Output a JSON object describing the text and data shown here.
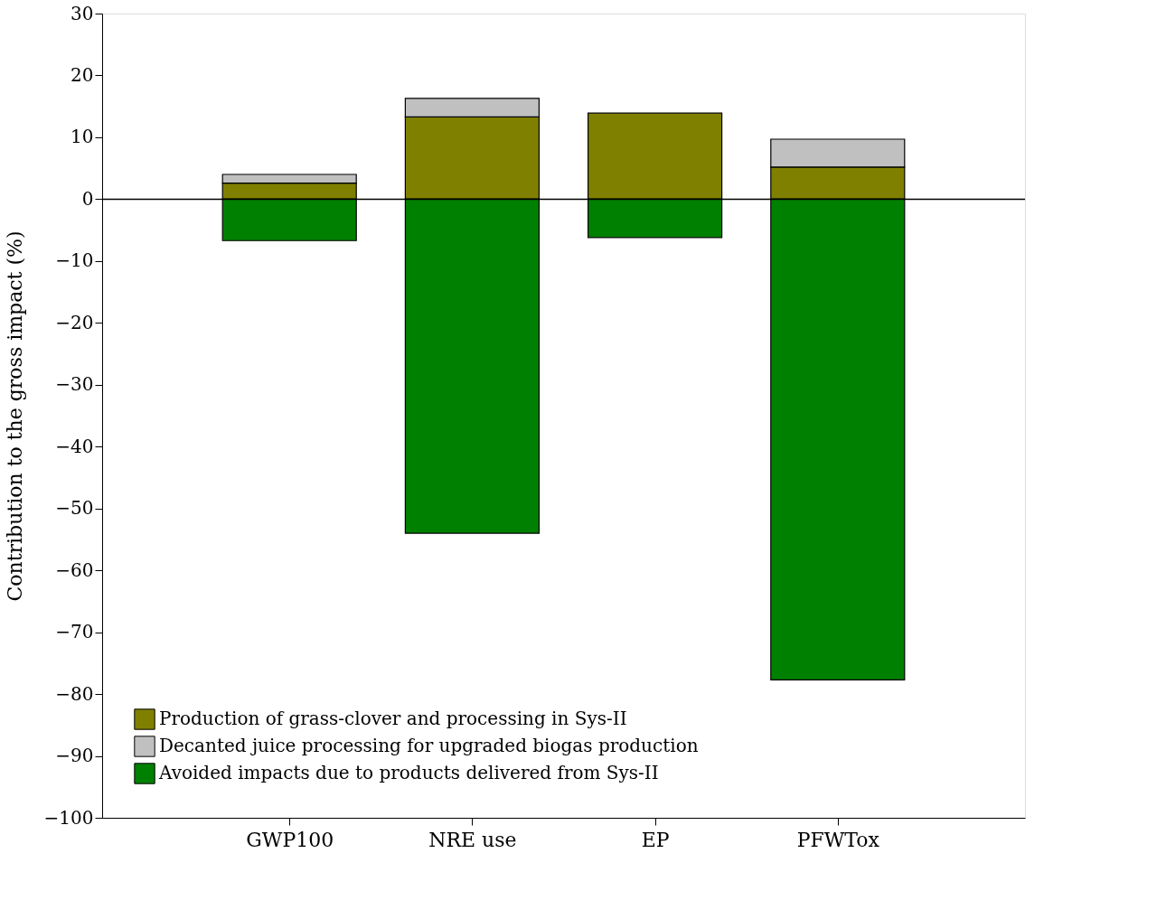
{
  "chart_data": {
    "type": "bar",
    "stacked": true,
    "ylabel": "Contribution to the gross impact (%)",
    "categories": [
      "GWP100",
      "NRE use",
      "EP",
      "PFWTox"
    ],
    "series": [
      {
        "name": "Production of grass-clover and processing in Sys-II",
        "color": "#808000",
        "values": [
          2.6,
          13.3,
          13.9,
          5.2
        ]
      },
      {
        "name": "Decanted juice processing for upgraded biogas production",
        "color": "#c0c0c0",
        "values": [
          1.4,
          3.0,
          null,
          4.5
        ]
      },
      {
        "name": "Avoided impacts due to products delivered from Sys-II",
        "color": "#008000",
        "values": [
          -6.7,
          -54.0,
          -6.2,
          -77.7
        ]
      }
    ],
    "ylim": [
      -100,
      30
    ],
    "yticks": [
      -100,
      -90,
      -80,
      -70,
      -60,
      -50,
      -40,
      -30,
      -20,
      -10,
      0,
      10,
      20,
      30
    ],
    "ref_lines": [
      {
        "axis": "y",
        "value": 0
      }
    ],
    "grid": false,
    "legend": "bottom left"
  }
}
